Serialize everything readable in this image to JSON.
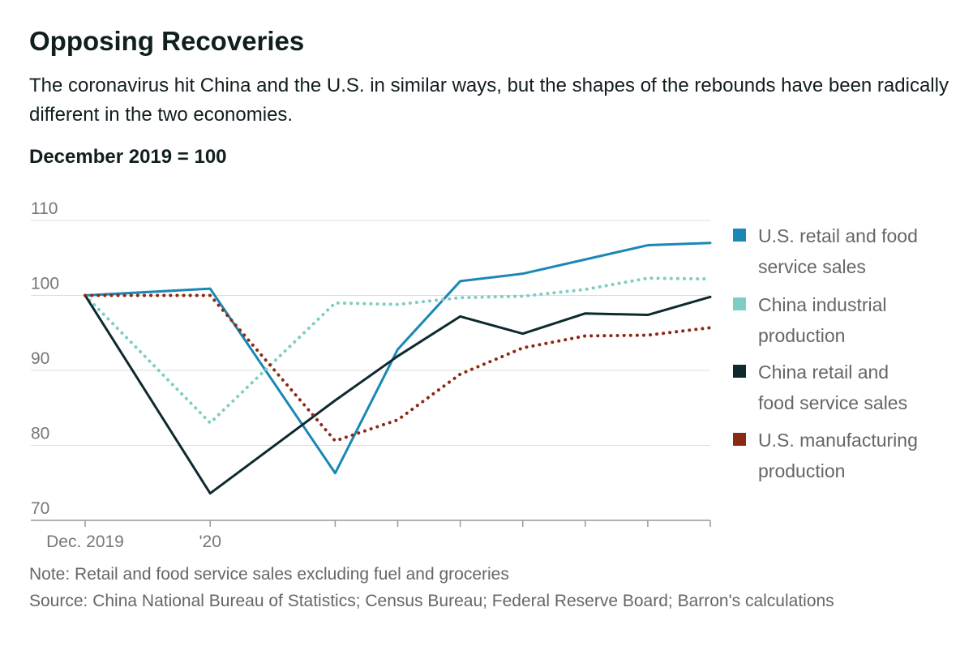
{
  "chart_data": {
    "type": "line",
    "title": "Opposing Recoveries",
    "subtitle": "The coronavirus hit China and the U.S. in similar ways, but the shapes of the rebounds have been radically different in the two economies.",
    "y_label": "December 2019 = 100",
    "note": "Note: Retail and food service sales excluding fuel and groceries",
    "source": "Source: China National Bureau of Statistics; Census Bureau; Federal Reserve Board; Barron's calculations",
    "x": [
      0,
      2,
      4,
      5,
      6,
      7,
      8,
      9,
      10
    ],
    "xlim": [
      0,
      10
    ],
    "xticks": [
      {
        "value": 0,
        "label": "Dec. 2019"
      },
      {
        "value": 2,
        "label": "'20"
      },
      {
        "value": 4,
        "label": null
      },
      {
        "value": 5,
        "label": null
      },
      {
        "value": 6,
        "label": null
      },
      {
        "value": 7,
        "label": null
      },
      {
        "value": 8,
        "label": null
      },
      {
        "value": 9,
        "label": null
      },
      {
        "value": 10,
        "label": null
      }
    ],
    "ylim": [
      70,
      110
    ],
    "yticks": [
      70,
      80,
      90,
      100,
      110
    ],
    "grid": true,
    "series": [
      {
        "name": "U.S. retail and food service sales",
        "color": "#1a87b5",
        "dash": false,
        "values": [
          100,
          100.9,
          76.3,
          92.8,
          101.9,
          102.9,
          104.8,
          106.7,
          107.0
        ]
      },
      {
        "name": "China industrial production",
        "color": "#7ecdc4",
        "dash": true,
        "values": [
          100,
          83.0,
          99.0,
          98.8,
          99.7,
          99.9,
          100.8,
          102.3,
          102.2
        ]
      },
      {
        "name": "China retail and food service sales",
        "color": "#0e2a2e",
        "dash": false,
        "values": [
          100,
          73.6,
          86.0,
          91.9,
          97.2,
          94.9,
          97.6,
          97.4,
          99.8
        ]
      },
      {
        "name": "U.S. manufacturing production",
        "color": "#8b2a14",
        "dash": true,
        "values": [
          100,
          100,
          80.6,
          83.4,
          89.5,
          93.0,
          94.6,
          94.7,
          95.7
        ]
      }
    ]
  }
}
